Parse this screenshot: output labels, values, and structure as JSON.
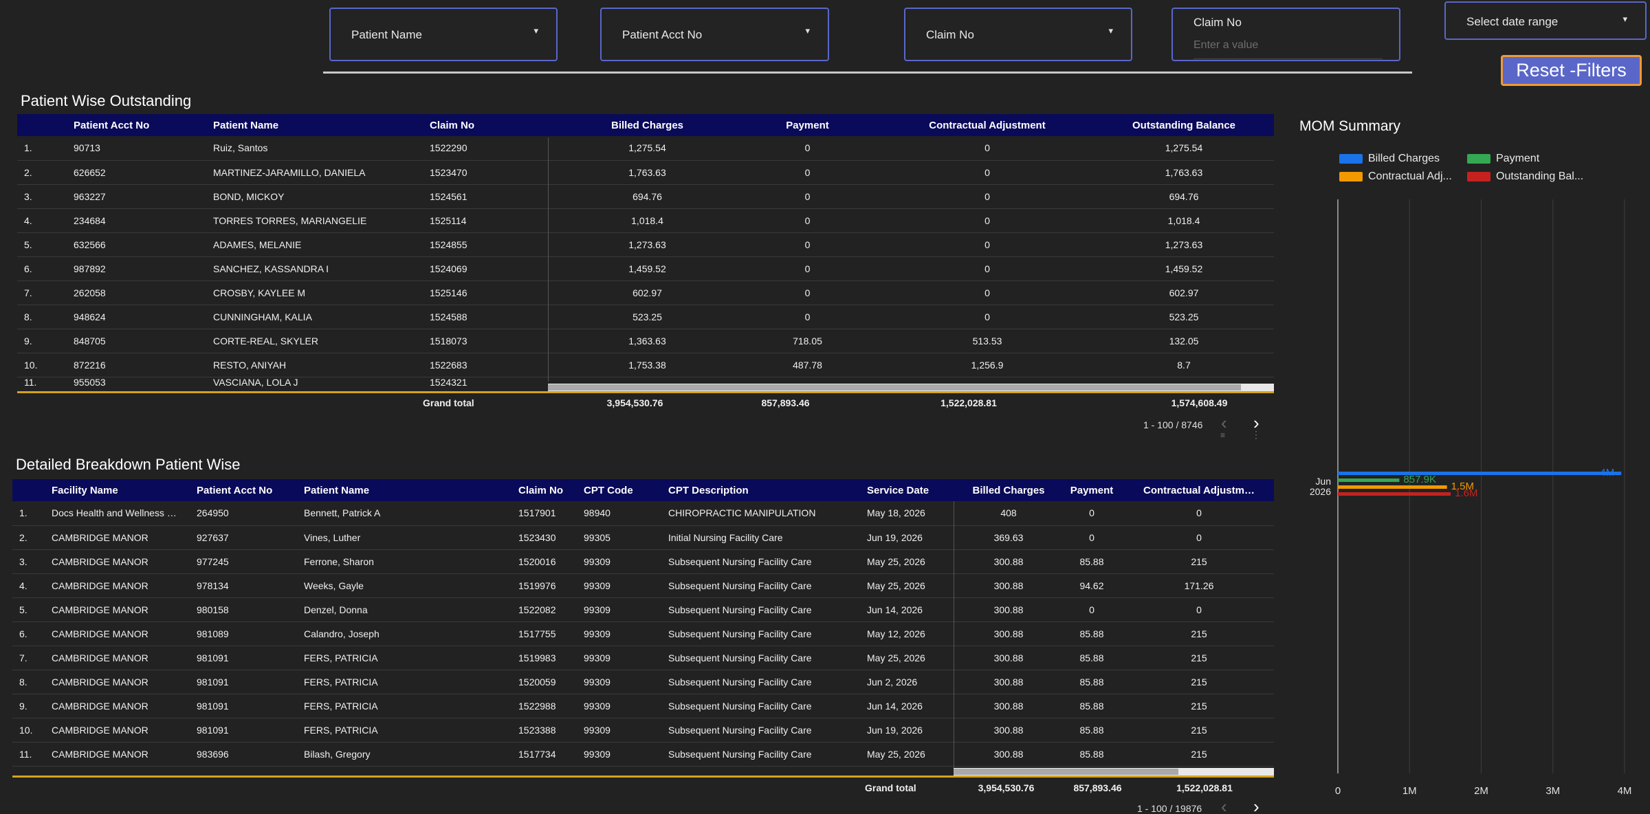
{
  "filters": {
    "patient_name": "Patient Name",
    "patient_acct": "Patient Acct No",
    "claim_no": "Claim No",
    "claim_no_value_label": "Claim No",
    "claim_no_value_placeholder": "Enter a value",
    "date_range": "Select date range",
    "dropdown_icon": "triangle-down"
  },
  "reset_label": "Reset -Filters",
  "table1": {
    "title": "Patient Wise Outstanding",
    "headers": [
      "Patient Acct No",
      "Patient Name",
      "Claim No",
      "Billed Charges",
      "Payment",
      "Contractual Adjustment",
      "Outstanding Balance"
    ],
    "rows": [
      [
        "1.",
        "90713",
        "Ruiz, Santos",
        "1522290",
        "1,275.54",
        "0",
        "0",
        "1,275.54"
      ],
      [
        "2.",
        "626652",
        "MARTINEZ-JARAMILLO, DANIELA",
        "1523470",
        "1,763.63",
        "0",
        "0",
        "1,763.63"
      ],
      [
        "3.",
        "963227",
        "BOND, MICKOY",
        "1524561",
        "694.76",
        "0",
        "0",
        "694.76"
      ],
      [
        "4.",
        "234684",
        "TORRES TORRES, MARIANGELIE",
        "1525114",
        "1,018.4",
        "0",
        "0",
        "1,018.4"
      ],
      [
        "5.",
        "632566",
        "ADAMES, MELANIE",
        "1524855",
        "1,273.63",
        "0",
        "0",
        "1,273.63"
      ],
      [
        "6.",
        "987892",
        "SANCHEZ, KASSANDRA I",
        "1524069",
        "1,459.52",
        "0",
        "0",
        "1,459.52"
      ],
      [
        "7.",
        "262058",
        "CROSBY, KAYLEE M",
        "1525146",
        "602.97",
        "0",
        "0",
        "602.97"
      ],
      [
        "8.",
        "948624",
        "CUNNINGHAM, KALIA",
        "1524588",
        "523.25",
        "0",
        "0",
        "523.25"
      ],
      [
        "9.",
        "848705",
        "CORTE-REAL, SKYLER",
        "1518073",
        "1,363.63",
        "718.05",
        "513.53",
        "132.05"
      ],
      [
        "10.",
        "872216",
        "RESTO, ANIYAH",
        "1522683",
        "1,753.38",
        "487.78",
        "1,256.9",
        "8.7"
      ],
      [
        "11.",
        "955053",
        "VASCIANA, LOLA J",
        "1524321",
        "",
        "",
        "",
        ""
      ]
    ],
    "grand_total_label": "Grand total",
    "totals": [
      "3,954,530.76",
      "857,893.46",
      "1,522,028.81",
      "1,574,608.49"
    ],
    "pager": "1 - 100 / 8746"
  },
  "table2": {
    "title": "Detailed Breakdown Patient Wise",
    "headers": [
      "Facility Name",
      "Patient Acct No",
      "Patient Name",
      "Claim No",
      "CPT Code",
      "CPT Description",
      "Service Date",
      "Billed Charges",
      "Payment",
      "Contractual Adjustm…"
    ],
    "rows": [
      [
        "1.",
        "Docs Health and Wellness …",
        "264950",
        "Bennett, Patrick A",
        "1517901",
        "98940",
        "CHIROPRACTIC MANIPULATION",
        "May 18, 2026",
        "408",
        "0",
        "0"
      ],
      [
        "2.",
        "CAMBRIDGE MANOR",
        "927637",
        "Vines, Luther",
        "1523430",
        "99305",
        "Initial Nursing Facility Care",
        "Jun 19, 2026",
        "369.63",
        "0",
        "0"
      ],
      [
        "3.",
        "CAMBRIDGE MANOR",
        "977245",
        "Ferrone, Sharon",
        "1520016",
        "99309",
        "Subsequent Nursing Facility Care",
        "May 25, 2026",
        "300.88",
        "85.88",
        "215"
      ],
      [
        "4.",
        "CAMBRIDGE MANOR",
        "978134",
        "Weeks, Gayle",
        "1519976",
        "99309",
        "Subsequent Nursing Facility Care",
        "May 25, 2026",
        "300.88",
        "94.62",
        "171.26"
      ],
      [
        "5.",
        "CAMBRIDGE MANOR",
        "980158",
        "Denzel, Donna",
        "1522082",
        "99309",
        "Subsequent Nursing Facility Care",
        "Jun 14, 2026",
        "300.88",
        "0",
        "0"
      ],
      [
        "6.",
        "CAMBRIDGE MANOR",
        "981089",
        "Calandro, Joseph",
        "1517755",
        "99309",
        "Subsequent Nursing Facility Care",
        "May 12, 2026",
        "300.88",
        "85.88",
        "215"
      ],
      [
        "7.",
        "CAMBRIDGE MANOR",
        "981091",
        "FERS, PATRICIA",
        "1519983",
        "99309",
        "Subsequent Nursing Facility Care",
        "May 25, 2026",
        "300.88",
        "85.88",
        "215"
      ],
      [
        "8.",
        "CAMBRIDGE MANOR",
        "981091",
        "FERS, PATRICIA",
        "1520059",
        "99309",
        "Subsequent Nursing Facility Care",
        "Jun 2, 2026",
        "300.88",
        "85.88",
        "215"
      ],
      [
        "9.",
        "CAMBRIDGE MANOR",
        "981091",
        "FERS, PATRICIA",
        "1522988",
        "99309",
        "Subsequent Nursing Facility Care",
        "Jun 14, 2026",
        "300.88",
        "85.88",
        "215"
      ],
      [
        "10.",
        "CAMBRIDGE MANOR",
        "981091",
        "FERS, PATRICIA",
        "1523388",
        "99309",
        "Subsequent Nursing Facility Care",
        "Jun 19, 2026",
        "300.88",
        "85.88",
        "215"
      ],
      [
        "11.",
        "CAMBRIDGE MANOR",
        "983696",
        "Bilash, Gregory",
        "1517734",
        "99309",
        "Subsequent Nursing Facility Care",
        "May 25, 2026",
        "300.88",
        "85.88",
        "215"
      ]
    ],
    "grand_total_label": "Grand total",
    "totals": [
      "3,954,530.76",
      "857,893.46",
      "1,522,028.81"
    ],
    "pager": "1 - 100 / 19876"
  },
  "mom": {
    "title": "MOM Summary",
    "legend": [
      {
        "name": "Billed Charges",
        "color": "#1a73e8"
      },
      {
        "name": "Payment",
        "color": "#34a853"
      },
      {
        "name": "Contractual Adj...",
        "color": "#f29900"
      },
      {
        "name": "Outstanding Bal...",
        "color": "#c5221f"
      }
    ]
  },
  "chart_data": {
    "type": "bar",
    "orientation": "horizontal",
    "categories": [
      "Jun 2026"
    ],
    "category_lines": [
      "Jun",
      "2026"
    ],
    "series": [
      {
        "name": "Billed Charges",
        "values": [
          3954530.76
        ],
        "label": "4M",
        "color": "#1a73e8"
      },
      {
        "name": "Payment",
        "values": [
          857893.46
        ],
        "label": "857.9K",
        "color": "#34a853"
      },
      {
        "name": "Contractual Adj...",
        "values": [
          1522028.81
        ],
        "label": "1.5M",
        "color": "#f29900"
      },
      {
        "name": "Outstanding Bal...",
        "values": [
          1574608.49
        ],
        "label": "1.6M",
        "color": "#c5221f"
      }
    ],
    "xlim": [
      0,
      4000000
    ],
    "x_ticks": [
      {
        "value": 0,
        "label": "0"
      },
      {
        "value": 1000000,
        "label": "1M"
      },
      {
        "value": 2000000,
        "label": "2M"
      },
      {
        "value": 3000000,
        "label": "3M"
      },
      {
        "value": 4000000,
        "label": "4M"
      }
    ],
    "legend_position": "top"
  }
}
